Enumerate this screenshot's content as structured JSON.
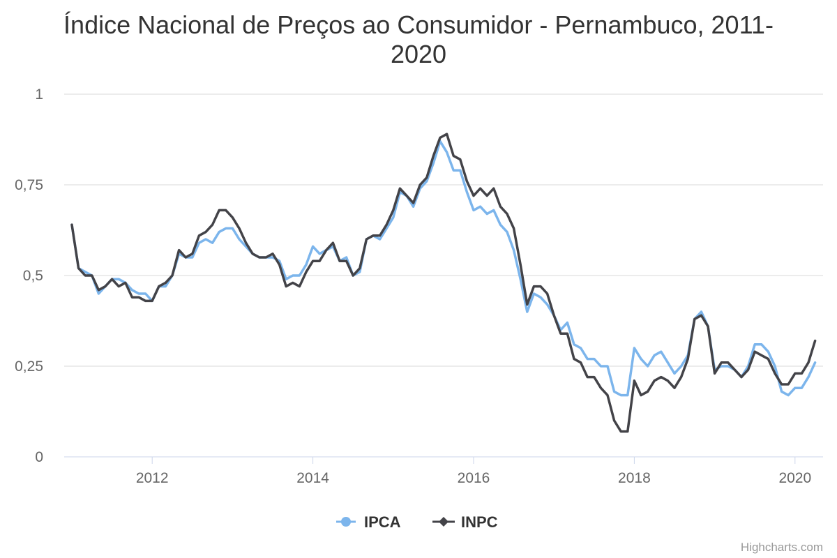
{
  "chart_data": {
    "type": "line",
    "title": "Índice Nacional de Preços ao Consumidor - Pernambuco, 2011-2020",
    "title_lines": [
      "Índice Nacional de Preços ao Consumidor - Pernambuco, 2011-",
      "2020"
    ],
    "x_start": "2011-01",
    "x_end": "2020-04",
    "x_ticks": [
      "2012",
      "2014",
      "2016",
      "2018",
      "2020"
    ],
    "ylim": [
      0,
      1
    ],
    "y_ticks": [
      {
        "value": 0,
        "label": "0"
      },
      {
        "value": 0.25,
        "label": "0,25"
      },
      {
        "value": 0.5,
        "label": "0,5"
      },
      {
        "value": 0.75,
        "label": "0,75"
      },
      {
        "value": 1,
        "label": "1"
      }
    ],
    "grid": true,
    "legend_position": "bottom-center",
    "series": [
      {
        "name": "IPCA",
        "color": "#7cb5ec",
        "marker": "circle",
        "values": [
          0.64,
          0.52,
          0.51,
          0.5,
          0.45,
          0.47,
          0.49,
          0.49,
          0.48,
          0.46,
          0.45,
          0.45,
          0.43,
          0.47,
          0.47,
          0.5,
          0.56,
          0.55,
          0.55,
          0.59,
          0.6,
          0.59,
          0.62,
          0.63,
          0.63,
          0.6,
          0.58,
          0.56,
          0.55,
          0.55,
          0.55,
          0.54,
          0.49,
          0.5,
          0.5,
          0.53,
          0.58,
          0.56,
          0.57,
          0.58,
          0.54,
          0.55,
          0.5,
          0.51,
          0.6,
          0.61,
          0.6,
          0.63,
          0.66,
          0.73,
          0.72,
          0.69,
          0.74,
          0.76,
          0.81,
          0.87,
          0.84,
          0.79,
          0.79,
          0.73,
          0.68,
          0.69,
          0.67,
          0.68,
          0.64,
          0.62,
          0.57,
          0.49,
          0.4,
          0.45,
          0.44,
          0.42,
          0.39,
          0.35,
          0.37,
          0.31,
          0.3,
          0.27,
          0.27,
          0.25,
          0.25,
          0.18,
          0.17,
          0.17,
          0.3,
          0.27,
          0.25,
          0.28,
          0.29,
          0.26,
          0.23,
          0.25,
          0.28,
          0.38,
          0.4,
          0.36,
          0.24,
          0.25,
          0.25,
          0.24,
          0.22,
          0.25,
          0.31,
          0.31,
          0.29,
          0.25,
          0.18,
          0.17,
          0.19,
          0.19,
          0.22,
          0.26
        ]
      },
      {
        "name": "INPC",
        "color": "#434348",
        "marker": "diamond",
        "values": [
          0.64,
          0.52,
          0.5,
          0.5,
          0.46,
          0.47,
          0.49,
          0.47,
          0.48,
          0.44,
          0.44,
          0.43,
          0.43,
          0.47,
          0.48,
          0.5,
          0.57,
          0.55,
          0.56,
          0.61,
          0.62,
          0.64,
          0.68,
          0.68,
          0.66,
          0.63,
          0.59,
          0.56,
          0.55,
          0.55,
          0.56,
          0.53,
          0.47,
          0.48,
          0.47,
          0.51,
          0.54,
          0.54,
          0.57,
          0.59,
          0.54,
          0.54,
          0.5,
          0.52,
          0.6,
          0.61,
          0.61,
          0.64,
          0.68,
          0.74,
          0.72,
          0.7,
          0.75,
          0.77,
          0.83,
          0.88,
          0.89,
          0.83,
          0.82,
          0.76,
          0.72,
          0.74,
          0.72,
          0.74,
          0.69,
          0.67,
          0.63,
          0.53,
          0.42,
          0.47,
          0.47,
          0.45,
          0.39,
          0.34,
          0.34,
          0.27,
          0.26,
          0.22,
          0.22,
          0.19,
          0.17,
          0.1,
          0.07,
          0.07,
          0.21,
          0.17,
          0.18,
          0.21,
          0.22,
          0.21,
          0.19,
          0.22,
          0.27,
          0.38,
          0.39,
          0.36,
          0.23,
          0.26,
          0.26,
          0.24,
          0.22,
          0.24,
          0.29,
          0.28,
          0.27,
          0.23,
          0.2,
          0.2,
          0.23,
          0.23,
          0.26,
          0.32
        ]
      }
    ]
  },
  "credits": "Highcharts.com"
}
